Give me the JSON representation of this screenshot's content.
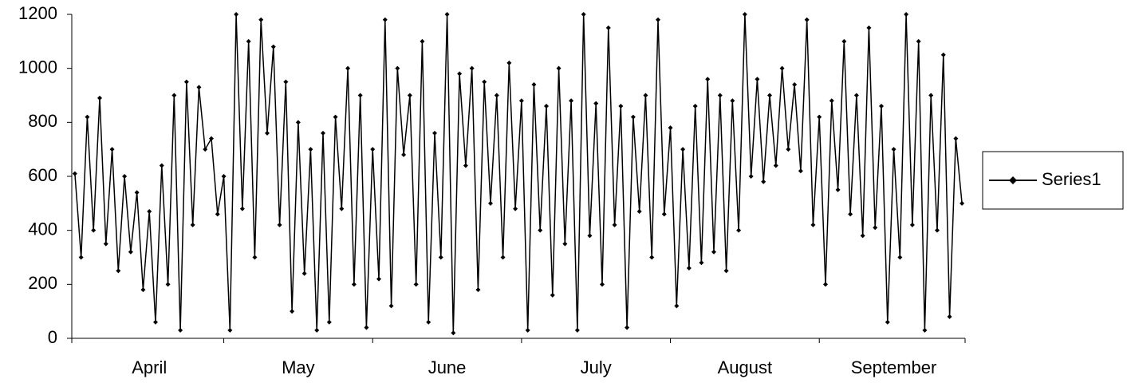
{
  "chart_data": {
    "type": "line",
    "categories": [
      null,
      null,
      null,
      null,
      null,
      null,
      null,
      null,
      null,
      null,
      null,
      null,
      "April",
      null,
      null,
      null,
      null,
      null,
      null,
      null,
      null,
      null,
      null,
      null,
      null,
      null,
      null,
      null,
      null,
      null,
      null,
      null,
      null,
      null,
      null,
      null,
      "May",
      null,
      null,
      null,
      null,
      null,
      null,
      null,
      null,
      null,
      null,
      null,
      null,
      null,
      null,
      null,
      null,
      null,
      null,
      null,
      null,
      null,
      null,
      null,
      "June",
      null,
      null,
      null,
      null,
      null,
      null,
      null,
      null,
      null,
      null,
      null,
      null,
      null,
      null,
      null,
      null,
      null,
      null,
      null,
      null,
      null,
      null,
      null,
      "July",
      null,
      null,
      null,
      null,
      null,
      null,
      null,
      null,
      null,
      null,
      null,
      null,
      null,
      null,
      null,
      null,
      null,
      null,
      null,
      null,
      null,
      null,
      null,
      "August",
      null,
      null,
      null,
      null,
      null,
      null,
      null,
      null,
      null,
      null,
      null,
      null,
      null,
      null,
      null,
      null,
      null,
      null,
      null,
      null,
      null,
      null,
      null,
      "September",
      null,
      null,
      null,
      null,
      null,
      null,
      null,
      null,
      null,
      null,
      null
    ],
    "series": [
      {
        "name": "Series1",
        "color": "#000000",
        "values": [
          610,
          300,
          820,
          400,
          890,
          350,
          700,
          250,
          600,
          320,
          540,
          180,
          470,
          60,
          640,
          200,
          900,
          30,
          950,
          420,
          930,
          700,
          740,
          460,
          600,
          30,
          1200,
          480,
          1100,
          300,
          1180,
          760,
          1080,
          420,
          950,
          100,
          800,
          240,
          700,
          30,
          760,
          60,
          820,
          480,
          1000,
          200,
          900,
          40,
          700,
          220,
          1180,
          120,
          1000,
          680,
          900,
          200,
          1100,
          60,
          760,
          300,
          1200,
          20,
          980,
          640,
          1000,
          180,
          950,
          500,
          900,
          300,
          1020,
          480,
          880,
          30,
          940,
          400,
          860,
          160,
          1000,
          350,
          880,
          30,
          1200,
          380,
          870,
          200,
          1150,
          420,
          860,
          40,
          820,
          470,
          900,
          300,
          1180,
          460,
          780,
          120,
          700,
          260,
          860,
          280,
          960,
          320,
          900,
          250,
          880,
          400,
          1200,
          600,
          960,
          580,
          900,
          640,
          1000,
          700,
          940,
          620,
          1180,
          420,
          820,
          200,
          880,
          550,
          1100,
          460,
          900,
          380,
          1150,
          410,
          860,
          60,
          700,
          300,
          1200,
          420,
          1100,
          30,
          900,
          400,
          1050,
          80,
          740,
          500
        ]
      }
    ],
    "ylim": [
      0,
      1200
    ],
    "yticks": [
      0,
      200,
      400,
      600,
      800,
      1000,
      1200
    ],
    "legend": "right",
    "markers": "diamond"
  }
}
